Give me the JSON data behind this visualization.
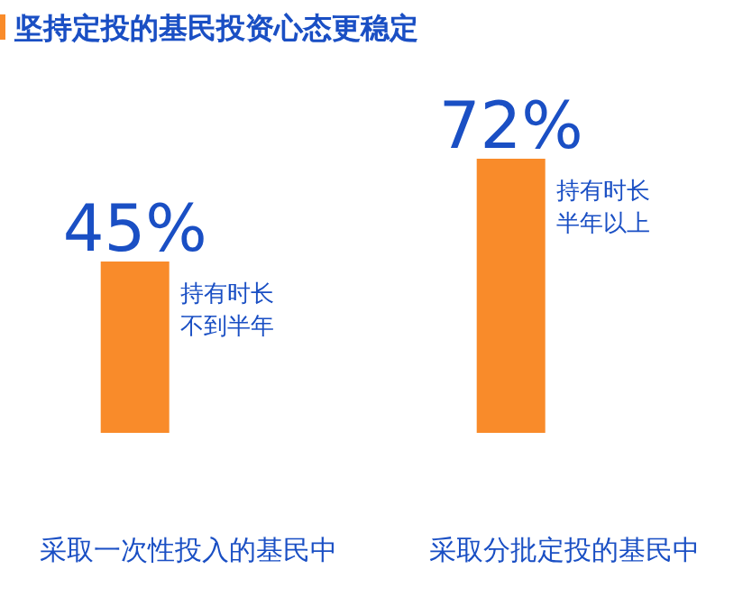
{
  "chart_data": {
    "type": "bar",
    "title": "坚持定投的基民投资心态更稳定",
    "categories": [
      "采取一次性投入的基民中",
      "采取分批定投的基民中"
    ],
    "values": [
      45,
      72
    ],
    "color": "#f98b2a",
    "value_labels": [
      "45%",
      "72%"
    ],
    "annotations": [
      "持有时长不到半年",
      "持有时长半年以上"
    ]
  }
}
